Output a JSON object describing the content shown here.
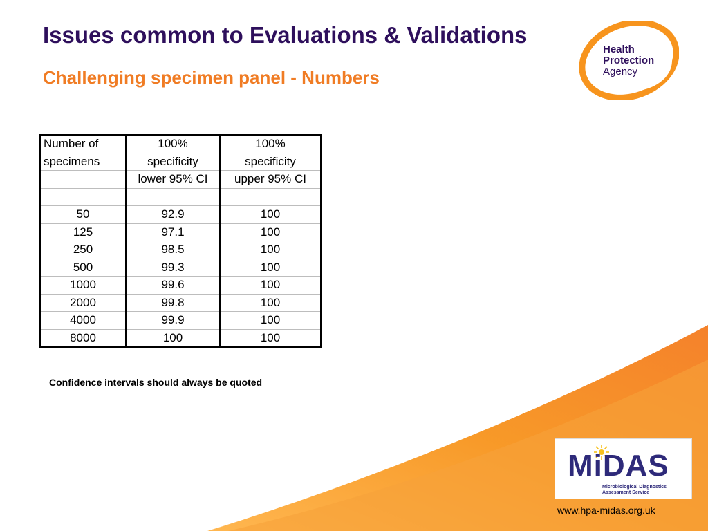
{
  "header": {
    "title": "Issues common to Evaluations & Validations",
    "subtitle": "Challenging specimen panel - Numbers"
  },
  "hpa_logo": {
    "line1": "Health",
    "line2": "Protection",
    "line3": "Agency"
  },
  "table": {
    "header_rows": [
      [
        "Number of",
        "100%",
        "100%"
      ],
      [
        "specimens",
        "specificity",
        "specificity"
      ],
      [
        "",
        "lower 95% CI",
        "upper 95% CI"
      ],
      [
        "",
        "",
        ""
      ]
    ],
    "rows": [
      [
        "50",
        "92.9",
        "100"
      ],
      [
        "125",
        "97.1",
        "100"
      ],
      [
        "250",
        "98.5",
        "100"
      ],
      [
        "500",
        "99.3",
        "100"
      ],
      [
        "1000",
        "99.6",
        "100"
      ],
      [
        "2000",
        "99.8",
        "100"
      ],
      [
        "4000",
        "99.9",
        "100"
      ],
      [
        "8000",
        "100",
        "100"
      ]
    ]
  },
  "note": "Confidence intervals should always be quoted",
  "midas_logo": {
    "word": "MiDAS",
    "tagline1": "Microbiological Diagnostics",
    "tagline2": "Assessment Service"
  },
  "footer": {
    "url": "www.hpa-midas.org.uk"
  },
  "colors": {
    "title": "#2e0f5c",
    "subtitle": "#f07c24",
    "swoosh": "#f7941d"
  }
}
